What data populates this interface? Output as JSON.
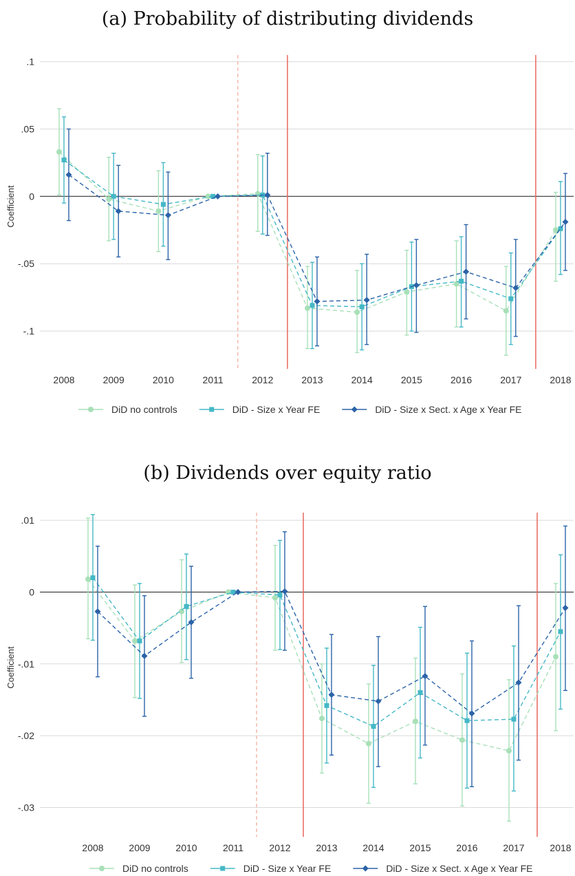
{
  "chart_data": [
    {
      "type": "line",
      "title": "(a) Probability of distributing dividends",
      "ylabel": "Coefficient",
      "xlabel": "",
      "categories": [
        "2008",
        "2009",
        "2010",
        "2011",
        "2012",
        "2013",
        "2014",
        "2015",
        "2016",
        "2017",
        "2018"
      ],
      "ylim": [
        -0.125,
        0.11
      ],
      "yticks": [
        0.1,
        0.05,
        0,
        -0.05,
        -0.1
      ],
      "ytick_labels": [
        ".1",
        ".05",
        "0",
        "-.05",
        "-.1"
      ],
      "grid": true,
      "legend_position": "bottom",
      "vlines": [
        {
          "x": 2011.5,
          "style": "dashed",
          "color": "#f4b8a8"
        },
        {
          "x": 2012.5,
          "style": "solid",
          "color": "#e8675f"
        },
        {
          "x": 2017.5,
          "style": "solid",
          "color": "#e8675f"
        }
      ],
      "series": [
        {
          "name": "DiD no controls",
          "color": "#a8e0b8",
          "marker": "circle",
          "values": [
            0.033,
            -0.002,
            -0.011,
            0,
            0.002,
            -0.083,
            -0.086,
            -0.071,
            -0.065,
            -0.085,
            -0.025
          ],
          "ci_low": [
            0.001,
            -0.033,
            -0.041,
            0,
            -0.026,
            -0.113,
            -0.116,
            -0.103,
            -0.097,
            -0.118,
            -0.063
          ],
          "ci_high": [
            0.065,
            0.029,
            0.019,
            0,
            0.031,
            -0.052,
            -0.055,
            -0.04,
            -0.033,
            -0.052,
            0.003
          ]
        },
        {
          "name": "DiD - Size x Year FE",
          "color": "#45b8c6",
          "marker": "square",
          "values": [
            0.027,
            0,
            -0.006,
            0,
            0.001,
            -0.081,
            -0.082,
            -0.067,
            -0.063,
            -0.076,
            -0.024
          ],
          "ci_low": [
            -0.005,
            -0.032,
            -0.037,
            0,
            -0.028,
            -0.113,
            -0.114,
            -0.1,
            -0.097,
            -0.11,
            -0.058
          ],
          "ci_high": [
            0.059,
            0.032,
            0.025,
            0,
            0.03,
            -0.049,
            -0.05,
            -0.034,
            -0.03,
            -0.042,
            0.011
          ]
        },
        {
          "name": "DiD - Size x Sect. x Age x Year FE",
          "color": "#2b63a8",
          "marker": "diamond",
          "values": [
            0.016,
            -0.011,
            -0.014,
            0,
            0.001,
            -0.078,
            -0.077,
            -0.066,
            -0.056,
            -0.068,
            -0.019
          ],
          "ci_low": [
            -0.018,
            -0.045,
            -0.047,
            0,
            -0.029,
            -0.111,
            -0.11,
            -0.101,
            -0.091,
            -0.104,
            -0.055
          ],
          "ci_high": [
            0.05,
            0.023,
            0.018,
            0,
            0.032,
            -0.045,
            -0.043,
            -0.032,
            -0.021,
            -0.032,
            0.017
          ]
        }
      ]
    },
    {
      "type": "line",
      "title": "(b) Dividends over equity ratio",
      "ylabel": "Coefficient",
      "xlabel": "",
      "categories": [
        "2008",
        "2009",
        "2010",
        "2011",
        "2012",
        "2013",
        "2014",
        "2015",
        "2016",
        "2017",
        "2018"
      ],
      "ylim": [
        -0.0335,
        0.0125
      ],
      "yticks": [
        0.01,
        0,
        -0.01,
        -0.02,
        -0.03
      ],
      "ytick_labels": [
        ".01",
        "0",
        "-.01",
        "-.02",
        "-.03"
      ],
      "grid": true,
      "legend_position": "bottom",
      "vlines": [
        {
          "x": 2011.5,
          "style": "dashed",
          "color": "#f4b8a8"
        },
        {
          "x": 2012.5,
          "style": "solid",
          "color": "#e8675f"
        },
        {
          "x": 2017.5,
          "style": "solid",
          "color": "#e8675f"
        }
      ],
      "series": [
        {
          "name": "DiD no controls",
          "color": "#a8e0b8",
          "marker": "circle",
          "values": [
            0.0018,
            -0.0068,
            -0.0027,
            0,
            -0.0008,
            -0.0176,
            -0.0211,
            -0.018,
            -0.0206,
            -0.0221,
            -0.009
          ],
          "ci_low": [
            -0.0065,
            -0.0147,
            -0.0098,
            0,
            -0.0081,
            -0.0252,
            -0.0294,
            -0.0267,
            -0.0298,
            -0.0319,
            -0.0193
          ],
          "ci_high": [
            0.0103,
            0.001,
            0.0045,
            0,
            0.0065,
            -0.01,
            -0.0128,
            -0.0092,
            -0.0114,
            -0.0122,
            0.0012
          ]
        },
        {
          "name": "DiD - Size x Year FE",
          "color": "#45b8c6",
          "marker": "square",
          "values": [
            0.002,
            -0.0068,
            -0.002,
            0,
            -0.0004,
            -0.0158,
            -0.0187,
            -0.014,
            -0.0179,
            -0.0177,
            -0.0055
          ],
          "ci_low": [
            -0.0067,
            -0.0148,
            -0.0094,
            0,
            -0.008,
            -0.0238,
            -0.0272,
            -0.0231,
            -0.0273,
            -0.0277,
            -0.0163
          ],
          "ci_high": [
            0.0108,
            0.0012,
            0.0053,
            0,
            0.0072,
            -0.0078,
            -0.0102,
            -0.0049,
            -0.0085,
            -0.0075,
            0.0052
          ]
        },
        {
          "name": "DiD - Size x Sect. x Age x Year FE",
          "color": "#2b63a8",
          "marker": "diamond",
          "values": [
            -0.0027,
            -0.0089,
            -0.0042,
            0,
            0.0001,
            -0.0143,
            -0.0152,
            -0.0117,
            -0.0169,
            -0.0126,
            -0.0022
          ],
          "ci_low": [
            -0.0118,
            -0.0173,
            -0.012,
            0,
            -0.0081,
            -0.0227,
            -0.0243,
            -0.0213,
            -0.0271,
            -0.0234,
            -0.0137
          ],
          "ci_high": [
            0.0064,
            -0.0005,
            0.0036,
            0,
            0.0084,
            -0.0059,
            -0.0062,
            -0.002,
            -0.0068,
            -0.0019,
            0.0092
          ]
        }
      ]
    }
  ]
}
